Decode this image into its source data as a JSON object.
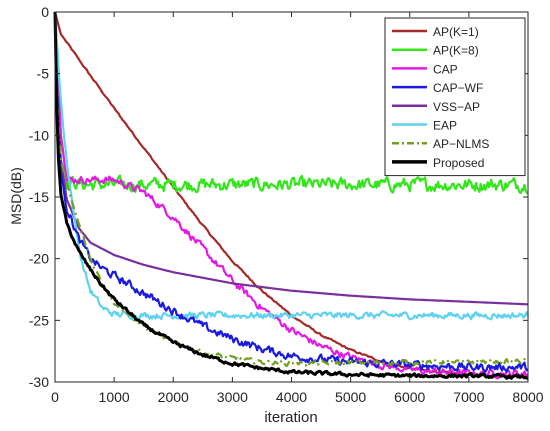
{
  "chart_data": {
    "type": "line",
    "title": "",
    "xlabel": "iteration",
    "ylabel": "MSD(dB)",
    "xlim": [
      0,
      8000
    ],
    "ylim": [
      -30,
      0
    ],
    "xticks": [
      0,
      1000,
      2000,
      3000,
      4000,
      5000,
      6000,
      7000,
      8000
    ],
    "yticks": [
      0,
      -5,
      -10,
      -15,
      -20,
      -25,
      -30
    ],
    "grid": false,
    "legend_position": "top-right",
    "series": [
      {
        "name": "AP(K=1)",
        "color": "#a52a2a",
        "style": "solid",
        "noise": 0.06,
        "points": [
          [
            0,
            0
          ],
          [
            100,
            -1.8
          ],
          [
            500,
            -4.5
          ],
          [
            1000,
            -7.8
          ],
          [
            1500,
            -11
          ],
          [
            2000,
            -14.2
          ],
          [
            2500,
            -17.3
          ],
          [
            3000,
            -20.2
          ],
          [
            3500,
            -22.6
          ],
          [
            4000,
            -24.6
          ],
          [
            4500,
            -26.2
          ],
          [
            5000,
            -27.4
          ],
          [
            5500,
            -28.3
          ],
          [
            6000,
            -28.9
          ],
          [
            6500,
            -29.2
          ],
          [
            7000,
            -29.4
          ],
          [
            7500,
            -29.5
          ],
          [
            8000,
            -29.5
          ]
        ]
      },
      {
        "name": "AP(K=8)",
        "color": "#33e61a",
        "style": "solid",
        "noise": 0.45,
        "points": [
          [
            0,
            0
          ],
          [
            100,
            -10
          ],
          [
            200,
            -13.7
          ],
          [
            500,
            -14
          ],
          [
            1000,
            -14
          ],
          [
            8000,
            -14
          ]
        ]
      },
      {
        "name": "CAP",
        "color": "#e31ae3",
        "style": "solid",
        "noise": 0.25,
        "points": [
          [
            0,
            0
          ],
          [
            100,
            -10
          ],
          [
            200,
            -13.6
          ],
          [
            500,
            -13.6
          ],
          [
            1000,
            -13.6
          ],
          [
            1500,
            -14.6
          ],
          [
            2000,
            -16.6
          ],
          [
            2500,
            -19.2
          ],
          [
            3000,
            -21.8
          ],
          [
            3500,
            -24
          ],
          [
            4000,
            -25.8
          ],
          [
            4500,
            -27.1
          ],
          [
            5000,
            -28
          ],
          [
            5500,
            -28.6
          ],
          [
            6000,
            -29
          ],
          [
            6500,
            -29.2
          ],
          [
            7000,
            -29.3
          ],
          [
            8000,
            -29.3
          ]
        ]
      },
      {
        "name": "CAP−WF",
        "color": "#1a1ae0",
        "style": "solid",
        "noise": 0.28,
        "points": [
          [
            0,
            0
          ],
          [
            50,
            -9
          ],
          [
            100,
            -13
          ],
          [
            200,
            -15.8
          ],
          [
            400,
            -18.4
          ],
          [
            600,
            -20
          ],
          [
            800,
            -20.8
          ],
          [
            1000,
            -21.4
          ],
          [
            1500,
            -22.8
          ],
          [
            2000,
            -24.2
          ],
          [
            2500,
            -25.5
          ],
          [
            3000,
            -26.5
          ],
          [
            3500,
            -27.3
          ],
          [
            4000,
            -27.9
          ],
          [
            5000,
            -28.4
          ],
          [
            6000,
            -28.6
          ],
          [
            7000,
            -28.8
          ],
          [
            8000,
            -28.8
          ]
        ]
      },
      {
        "name": "VSS−AP",
        "color": "#7a2f9e",
        "style": "solid",
        "noise": 0,
        "points": [
          [
            0,
            0
          ],
          [
            50,
            -8
          ],
          [
            100,
            -12
          ],
          [
            200,
            -15.2
          ],
          [
            400,
            -17.5
          ],
          [
            600,
            -18.7
          ],
          [
            1000,
            -19.7
          ],
          [
            1500,
            -20.5
          ],
          [
            2000,
            -21.1
          ],
          [
            3000,
            -22
          ],
          [
            4000,
            -22.6
          ],
          [
            5000,
            -23
          ],
          [
            6000,
            -23.3
          ],
          [
            7000,
            -23.5
          ],
          [
            8000,
            -23.7
          ]
        ]
      },
      {
        "name": "EAP",
        "color": "#5fd2ef",
        "style": "solid",
        "noise": 0.22,
        "points": [
          [
            0,
            0
          ],
          [
            80,
            -6
          ],
          [
            150,
            -10
          ],
          [
            250,
            -14
          ],
          [
            350,
            -17.5
          ],
          [
            450,
            -20.2
          ],
          [
            600,
            -22.6
          ],
          [
            800,
            -24
          ],
          [
            1000,
            -24.5
          ],
          [
            1500,
            -24.6
          ],
          [
            8000,
            -24.6
          ]
        ]
      },
      {
        "name": "AP−NLMS",
        "color": "#6fa01e",
        "style": "dashdot",
        "noise": 0.15,
        "points": [
          [
            0,
            0
          ],
          [
            50,
            -9
          ],
          [
            100,
            -12
          ],
          [
            200,
            -14
          ],
          [
            400,
            -17.2
          ],
          [
            600,
            -20
          ],
          [
            800,
            -22
          ],
          [
            1000,
            -23.5
          ],
          [
            1500,
            -25.5
          ],
          [
            2000,
            -26.8
          ],
          [
            2500,
            -27.6
          ],
          [
            3000,
            -28.1
          ],
          [
            3500,
            -28.4
          ],
          [
            4000,
            -28.5
          ],
          [
            8000,
            -28.3
          ]
        ]
      },
      {
        "name": "Proposed",
        "color": "#000000",
        "style": "solid",
        "noise": 0.12,
        "points": [
          [
            0,
            0
          ],
          [
            30,
            -8
          ],
          [
            60,
            -12
          ],
          [
            100,
            -14.8
          ],
          [
            200,
            -17.2
          ],
          [
            400,
            -19.4
          ],
          [
            600,
            -20.9
          ],
          [
            800,
            -22.2
          ],
          [
            1000,
            -23.3
          ],
          [
            1500,
            -25.4
          ],
          [
            2000,
            -26.8
          ],
          [
            2500,
            -27.8
          ],
          [
            3000,
            -28.5
          ],
          [
            3500,
            -28.9
          ],
          [
            4000,
            -29.2
          ],
          [
            5000,
            -29.4
          ],
          [
            6000,
            -29.5
          ],
          [
            7000,
            -29.5
          ],
          [
            8000,
            -29.6
          ]
        ]
      }
    ]
  }
}
